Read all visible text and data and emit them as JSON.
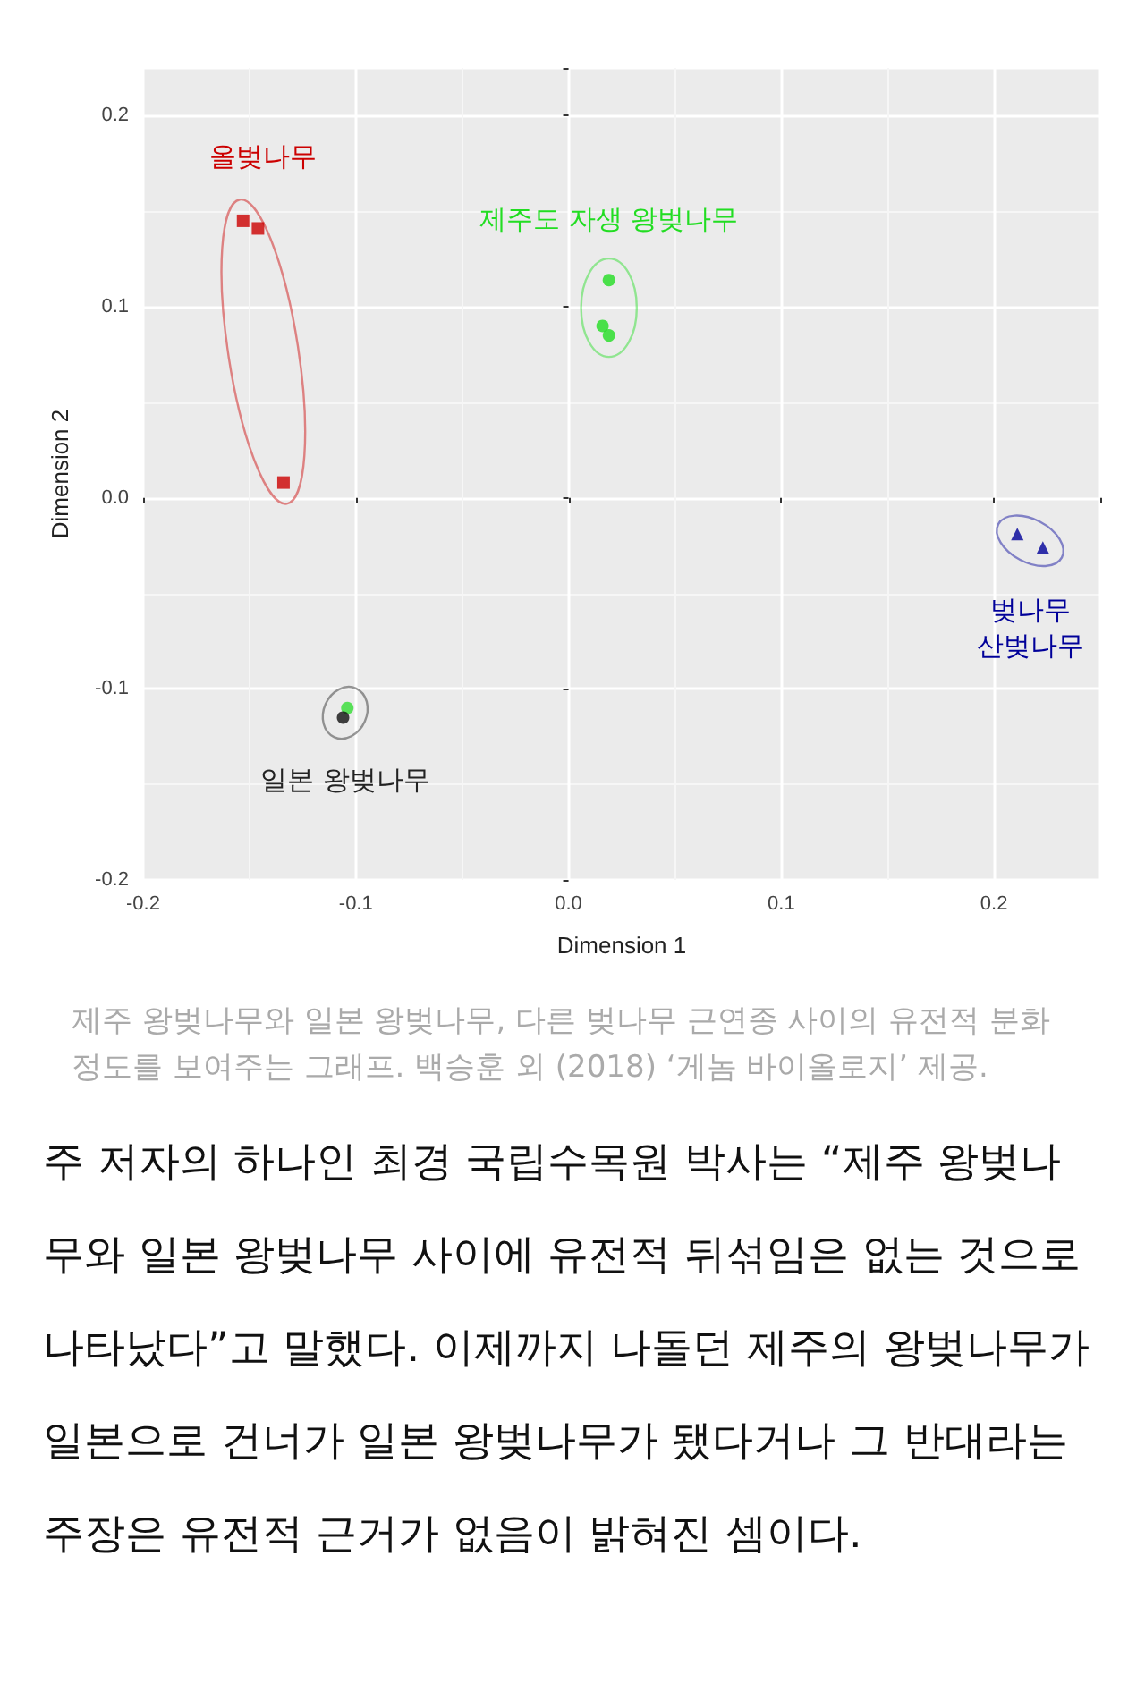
{
  "chart_data": {
    "type": "scatter",
    "xlabel": "Dimension 1",
    "ylabel": "Dimension 2",
    "xlim": [
      -0.2,
      0.25
    ],
    "ylim": [
      -0.2,
      0.225
    ],
    "xticks": [
      -0.2,
      -0.1,
      {
        "value": 0,
        "label": "0.0"
      },
      0.1,
      0.2
    ],
    "yticks": [
      -0.2,
      -0.1,
      {
        "value": 0,
        "label": "0.0"
      },
      0.1,
      0.2
    ],
    "grid": true,
    "series": [
      {
        "name": "올벚나무",
        "color": "#cc0000",
        "marker": "square",
        "x": [
          -0.153,
          -0.146,
          -0.134
        ],
        "values": [
          0.145,
          0.141,
          0.008
        ]
      },
      {
        "name": "제주도 자생 왕벚나무",
        "color": "#22dd22",
        "marker": "circle",
        "x": [
          0.019,
          0.016,
          0.019
        ],
        "values": [
          0.114,
          0.09,
          0.085
        ]
      },
      {
        "name": "벚나무\n산벚나무",
        "color": "#000099",
        "marker": "triangle",
        "x": [
          0.211,
          0.223
        ],
        "values": [
          -0.019,
          -0.026
        ]
      },
      {
        "name": "일본 왕벚나무",
        "color": "#222222",
        "colors": [
          "#33dd33",
          "#111111"
        ],
        "marker": "circle",
        "x": [
          -0.104,
          -0.106
        ],
        "values": [
          -0.11,
          -0.115
        ]
      }
    ],
    "annotations": [
      "제주 왕벚나무와 일본 왕벚나무, 다른 벚나무 근연종 사이의 유전적 분화 정도를 보여주는 그래프. 백승훈 외 (2018) ‘게놈 바이올로지’ 제공.",
      "주 저자의 하나인 최경 국립수목원 박사는 “제주 왕벚나무와 일본 왕벚나무 사이에 유전적 뒤섞임은 없는 것으로 나타났다”고 말했다. 이제까지 나돌던 제주의 왕벚나무가 일본으로 건너가 일본 왕벚나무가 됐다거나 그 반대라는 주장은 유전적 근거가 없음이 밝혀진 셈이다."
    ]
  }
}
